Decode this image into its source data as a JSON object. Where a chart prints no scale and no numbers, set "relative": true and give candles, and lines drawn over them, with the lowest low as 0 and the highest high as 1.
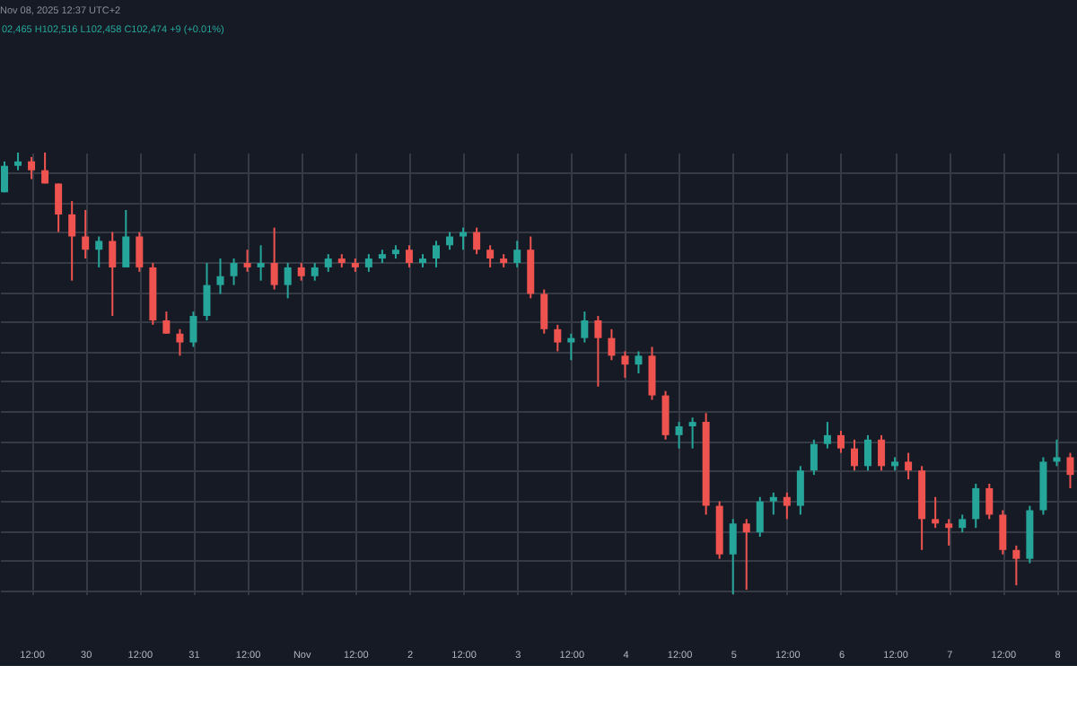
{
  "chart_data": {
    "type": "candlestick",
    "title": "Nov 08, 2025 12:37 UTC+2",
    "annotations": [
      "02,465 H102,516 L102,458 C102,474 +9 (+0.01%)"
    ],
    "relative": true,
    "grid": true,
    "tick_labels": "x",
    "xlim": [
      "2025-10-29T05:00",
      "2025-11-08T04:30"
    ],
    "xticks": [
      {
        "value": "2025-10-29T12:00",
        "label": "12:00"
      },
      {
        "value": "2025-10-30T00:00",
        "label": "30"
      },
      {
        "value": "2025-10-30T12:00",
        "label": "12:00"
      },
      {
        "value": "2025-10-31T00:00",
        "label": "31"
      },
      {
        "value": "2025-10-31T12:00",
        "label": "12:00"
      },
      {
        "value": "2025-11-01T00:00",
        "label": "Nov"
      },
      {
        "value": "2025-11-01T12:00",
        "label": "12:00"
      },
      {
        "value": "2025-11-02T00:00",
        "label": "2"
      },
      {
        "value": "2025-11-02T12:00",
        "label": "12:00"
      },
      {
        "value": "2025-11-03T00:00",
        "label": "3"
      },
      {
        "value": "2025-11-03T12:00",
        "label": "12:00"
      },
      {
        "value": "2025-11-04T00:00",
        "label": "4"
      },
      {
        "value": "2025-11-04T12:00",
        "label": "12:00"
      },
      {
        "value": "2025-11-05T00:00",
        "label": "5"
      },
      {
        "value": "2025-11-05T12:00",
        "label": "12:00"
      },
      {
        "value": "2025-11-06T00:00",
        "label": "6"
      },
      {
        "value": "2025-11-06T12:00",
        "label": "12:00"
      },
      {
        "value": "2025-11-07T00:00",
        "label": "7"
      },
      {
        "value": "2025-11-07T12:00",
        "label": "12:00"
      },
      {
        "value": "2025-11-08T00:00",
        "label": "8"
      }
    ],
    "x": [
      "2025-10-29T06:00",
      "2025-10-29T09:00",
      "2025-10-29T12:00",
      "2025-10-29T15:00",
      "2025-10-29T18:00",
      "2025-10-29T21:00",
      "2025-10-30T00:00",
      "2025-10-30T03:00",
      "2025-10-30T06:00",
      "2025-10-30T09:00",
      "2025-10-30T12:00",
      "2025-10-30T15:00",
      "2025-10-30T18:00",
      "2025-10-30T21:00",
      "2025-10-31T00:00",
      "2025-10-31T03:00",
      "2025-10-31T06:00",
      "2025-10-31T09:00",
      "2025-10-31T12:00",
      "2025-10-31T15:00",
      "2025-10-31T18:00",
      "2025-10-31T21:00",
      "2025-11-01T00:00",
      "2025-11-01T03:00",
      "2025-11-01T06:00",
      "2025-11-01T09:00",
      "2025-11-01T12:00",
      "2025-11-01T15:00",
      "2025-11-01T18:00",
      "2025-11-01T21:00",
      "2025-11-02T00:00",
      "2025-11-02T03:00",
      "2025-11-02T06:00",
      "2025-11-02T09:00",
      "2025-11-02T12:00",
      "2025-11-02T15:00",
      "2025-11-02T18:00",
      "2025-11-02T21:00",
      "2025-11-03T00:00",
      "2025-11-03T03:00",
      "2025-11-03T06:00",
      "2025-11-03T09:00",
      "2025-11-03T12:00",
      "2025-11-03T15:00",
      "2025-11-03T18:00",
      "2025-11-03T21:00",
      "2025-11-04T00:00",
      "2025-11-04T03:00",
      "2025-11-04T06:00",
      "2025-11-04T09:00",
      "2025-11-04T12:00",
      "2025-11-04T15:00",
      "2025-11-04T18:00",
      "2025-11-04T21:00",
      "2025-11-05T00:00",
      "2025-11-05T03:00",
      "2025-11-05T06:00",
      "2025-11-05T09:00",
      "2025-11-05T12:00",
      "2025-11-05T15:00",
      "2025-11-05T18:00",
      "2025-11-05T21:00",
      "2025-11-06T00:00",
      "2025-11-06T03:00",
      "2025-11-06T06:00",
      "2025-11-06T09:00",
      "2025-11-06T12:00",
      "2025-11-06T15:00",
      "2025-11-06T18:00",
      "2025-11-06T21:00",
      "2025-11-07T00:00",
      "2025-11-07T03:00",
      "2025-11-07T06:00",
      "2025-11-07T09:00",
      "2025-11-07T12:00",
      "2025-11-07T15:00",
      "2025-11-07T18:00",
      "2025-11-07T21:00",
      "2025-11-08T00:00",
      "2025-11-08T03:00"
    ],
    "ohlc": [
      [
        0.91,
        0.98,
        0.91,
        0.97
      ],
      [
        0.97,
        1.0,
        0.96,
        0.98
      ],
      [
        0.98,
        0.99,
        0.94,
        0.96
      ],
      [
        0.96,
        1.0,
        0.93,
        0.93
      ],
      [
        0.93,
        0.93,
        0.82,
        0.86
      ],
      [
        0.86,
        0.89,
        0.71,
        0.81
      ],
      [
        0.81,
        0.87,
        0.76,
        0.78
      ],
      [
        0.78,
        0.81,
        0.74,
        0.8
      ],
      [
        0.8,
        0.82,
        0.63,
        0.74
      ],
      [
        0.74,
        0.87,
        0.74,
        0.81
      ],
      [
        0.81,
        0.82,
        0.73,
        0.74
      ],
      [
        0.74,
        0.75,
        0.61,
        0.62
      ],
      [
        0.62,
        0.64,
        0.59,
        0.59
      ],
      [
        0.59,
        0.6,
        0.54,
        0.57
      ],
      [
        0.57,
        0.64,
        0.56,
        0.63
      ],
      [
        0.63,
        0.75,
        0.62,
        0.7
      ],
      [
        0.7,
        0.76,
        0.68,
        0.72
      ],
      [
        0.72,
        0.76,
        0.7,
        0.75
      ],
      [
        0.75,
        0.78,
        0.73,
        0.74
      ],
      [
        0.74,
        0.79,
        0.71,
        0.75
      ],
      [
        0.75,
        0.83,
        0.69,
        0.7
      ],
      [
        0.7,
        0.75,
        0.67,
        0.74
      ],
      [
        0.74,
        0.75,
        0.71,
        0.72
      ],
      [
        0.72,
        0.75,
        0.71,
        0.74
      ],
      [
        0.74,
        0.77,
        0.73,
        0.76
      ],
      [
        0.76,
        0.77,
        0.74,
        0.75
      ],
      [
        0.75,
        0.76,
        0.73,
        0.74
      ],
      [
        0.74,
        0.77,
        0.73,
        0.76
      ],
      [
        0.76,
        0.78,
        0.75,
        0.77
      ],
      [
        0.77,
        0.79,
        0.76,
        0.78
      ],
      [
        0.78,
        0.79,
        0.74,
        0.75
      ],
      [
        0.75,
        0.77,
        0.74,
        0.76
      ],
      [
        0.76,
        0.8,
        0.74,
        0.79
      ],
      [
        0.79,
        0.82,
        0.78,
        0.81
      ],
      [
        0.81,
        0.83,
        0.78,
        0.82
      ],
      [
        0.82,
        0.83,
        0.77,
        0.78
      ],
      [
        0.78,
        0.79,
        0.74,
        0.76
      ],
      [
        0.76,
        0.77,
        0.74,
        0.75
      ],
      [
        0.75,
        0.8,
        0.74,
        0.78
      ],
      [
        0.78,
        0.81,
        0.67,
        0.68
      ],
      [
        0.68,
        0.69,
        0.59,
        0.6
      ],
      [
        0.6,
        0.61,
        0.55,
        0.57
      ],
      [
        0.57,
        0.59,
        0.53,
        0.58
      ],
      [
        0.58,
        0.64,
        0.57,
        0.62
      ],
      [
        0.62,
        0.63,
        0.47,
        0.58
      ],
      [
        0.58,
        0.6,
        0.53,
        0.54
      ],
      [
        0.54,
        0.55,
        0.49,
        0.52
      ],
      [
        0.52,
        0.55,
        0.5,
        0.54
      ],
      [
        0.54,
        0.56,
        0.44,
        0.45
      ],
      [
        0.45,
        0.46,
        0.35,
        0.36
      ],
      [
        0.36,
        0.39,
        0.33,
        0.38
      ],
      [
        0.38,
        0.4,
        0.33,
        0.39
      ],
      [
        0.39,
        0.41,
        0.18,
        0.2
      ],
      [
        0.2,
        0.21,
        0.08,
        0.09
      ],
      [
        0.09,
        0.17,
        0.0,
        0.16
      ],
      [
        0.16,
        0.17,
        0.01,
        0.14
      ],
      [
        0.14,
        0.22,
        0.13,
        0.21
      ],
      [
        0.21,
        0.23,
        0.18,
        0.22
      ],
      [
        0.22,
        0.23,
        0.17,
        0.2
      ],
      [
        0.2,
        0.29,
        0.18,
        0.28
      ],
      [
        0.28,
        0.35,
        0.27,
        0.34
      ],
      [
        0.34,
        0.39,
        0.33,
        0.36
      ],
      [
        0.36,
        0.37,
        0.32,
        0.33
      ],
      [
        0.33,
        0.35,
        0.28,
        0.29
      ],
      [
        0.29,
        0.36,
        0.28,
        0.35
      ],
      [
        0.35,
        0.36,
        0.28,
        0.29
      ],
      [
        0.29,
        0.31,
        0.28,
        0.3
      ],
      [
        0.3,
        0.32,
        0.26,
        0.28
      ],
      [
        0.28,
        0.29,
        0.1,
        0.17
      ],
      [
        0.17,
        0.22,
        0.15,
        0.16
      ],
      [
        0.16,
        0.17,
        0.11,
        0.15
      ],
      [
        0.15,
        0.18,
        0.14,
        0.17
      ],
      [
        0.17,
        0.25,
        0.15,
        0.24
      ],
      [
        0.24,
        0.25,
        0.17,
        0.18
      ],
      [
        0.18,
        0.19,
        0.09,
        0.1
      ],
      [
        0.1,
        0.11,
        0.02,
        0.08
      ],
      [
        0.08,
        0.2,
        0.07,
        0.19
      ],
      [
        0.19,
        0.31,
        0.18,
        0.3
      ],
      [
        0.3,
        0.35,
        0.29,
        0.31
      ],
      [
        0.31,
        0.32,
        0.24,
        0.27
      ]
    ],
    "colors": [
      "#26a69a",
      "#26a69a",
      "#ef5350",
      "#ef5350",
      "#ef5350",
      "#ef5350",
      "#ef5350",
      "#26a69a",
      "#ef5350",
      "#26a69a",
      "#ef5350",
      "#ef5350",
      "#ef5350",
      "#ef5350",
      "#26a69a",
      "#26a69a",
      "#26a69a",
      "#26a69a",
      "#ef5350",
      "#26a69a",
      "#ef5350",
      "#26a69a",
      "#ef5350",
      "#26a69a",
      "#26a69a",
      "#ef5350",
      "#ef5350",
      "#26a69a",
      "#26a69a",
      "#26a69a",
      "#ef5350",
      "#26a69a",
      "#26a69a",
      "#26a69a",
      "#26a69a",
      "#ef5350",
      "#ef5350",
      "#ef5350",
      "#26a69a",
      "#ef5350",
      "#ef5350",
      "#ef5350",
      "#26a69a",
      "#26a69a",
      "#ef5350",
      "#ef5350",
      "#ef5350",
      "#26a69a",
      "#ef5350",
      "#ef5350",
      "#26a69a",
      "#26a69a",
      "#ef5350",
      "#ef5350",
      "#26a69a",
      "#ef5350",
      "#26a69a",
      "#26a69a",
      "#ef5350",
      "#26a69a",
      "#26a69a",
      "#26a69a",
      "#ef5350",
      "#ef5350",
      "#26a69a",
      "#ef5350",
      "#26a69a",
      "#ef5350",
      "#ef5350",
      "#ef5350",
      "#ef5350",
      "#26a69a",
      "#26a69a",
      "#ef5350",
      "#ef5350",
      "#ef5350",
      "#26a69a",
      "#26a69a",
      "#26a69a",
      "#ef5350"
    ]
  }
}
